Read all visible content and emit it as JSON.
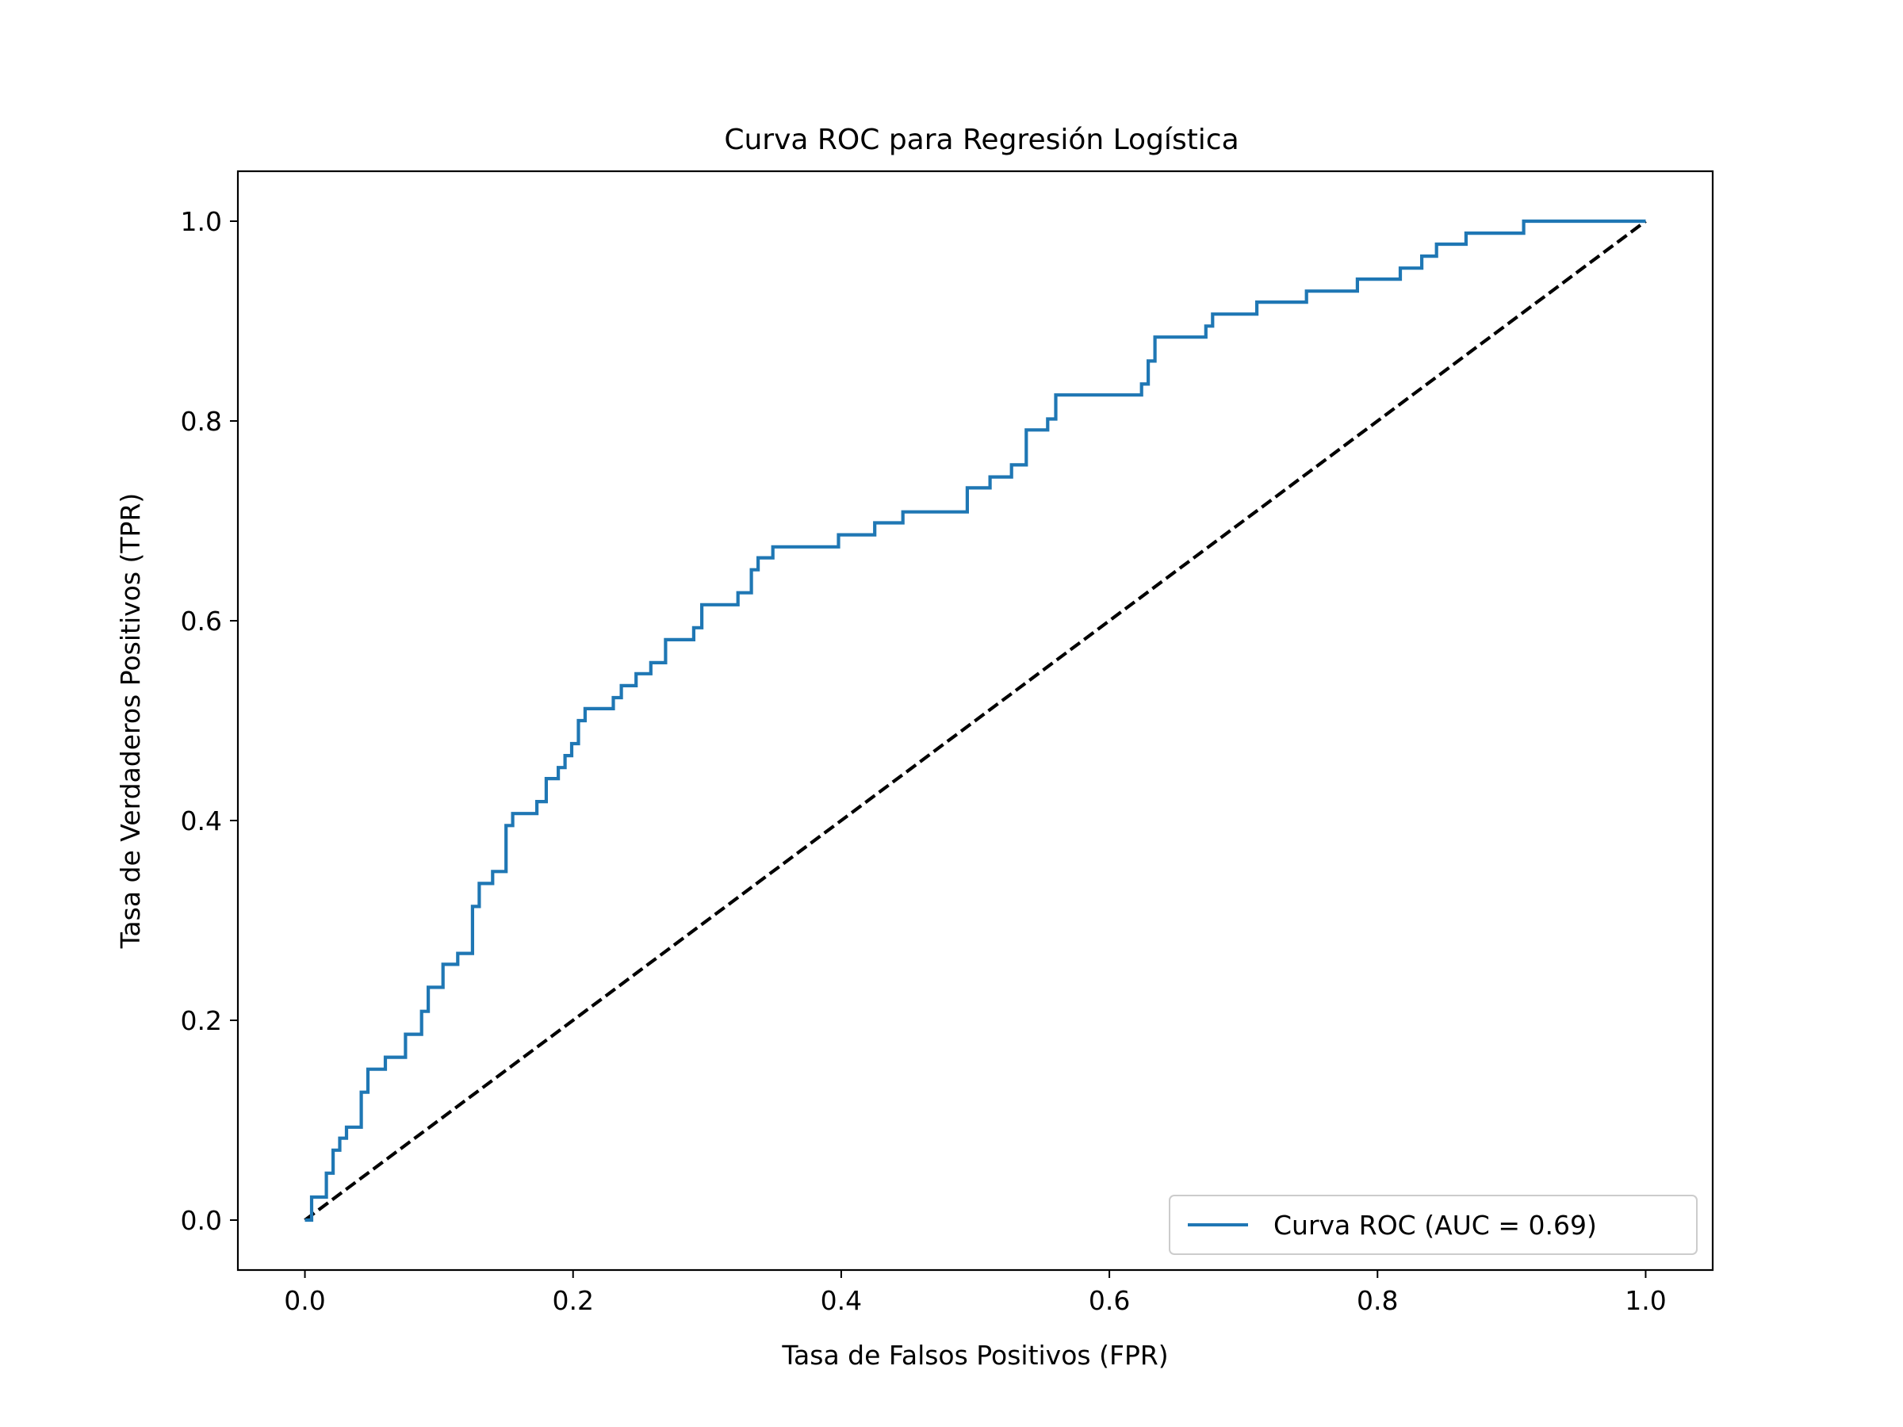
{
  "chart_data": {
    "type": "line",
    "title": "Curva ROC para Regresión Logística",
    "xlabel": "Tasa de Falsos Positivos (FPR)",
    "ylabel": "Tasa de Verdaderos Positivos (TPR)",
    "xlim": [
      -0.05,
      1.05
    ],
    "ylim": [
      -0.05,
      1.05
    ],
    "xticks": [
      0.0,
      0.2,
      0.4,
      0.6,
      0.8,
      1.0
    ],
    "yticks": [
      0.0,
      0.2,
      0.4,
      0.6,
      0.8,
      1.0
    ],
    "xtick_labels": [
      "0.0",
      "0.2",
      "0.4",
      "0.6",
      "0.8",
      "1.0"
    ],
    "ytick_labels": [
      "0.0",
      "0.2",
      "0.4",
      "0.6",
      "0.8",
      "1.0"
    ],
    "grid": false,
    "legend_position": "lower right",
    "series": [
      {
        "name": "Curva ROC (AUC = 0.69)",
        "color": "#1f77b4",
        "style": "solid",
        "x": [
          0.0,
          0.0,
          0.005,
          0.005,
          0.016,
          0.016,
          0.021,
          0.021,
          0.026,
          0.026,
          0.031,
          0.031,
          0.042,
          0.042,
          0.047,
          0.047,
          0.06,
          0.06,
          0.075,
          0.075,
          0.087,
          0.087,
          0.092,
          0.092,
          0.103,
          0.103,
          0.114,
          0.114,
          0.125,
          0.125,
          0.13,
          0.13,
          0.14,
          0.14,
          0.15,
          0.15,
          0.155,
          0.155,
          0.173,
          0.173,
          0.18,
          0.18,
          0.189,
          0.189,
          0.194,
          0.194,
          0.199,
          0.199,
          0.204,
          0.204,
          0.209,
          0.209,
          0.23,
          0.23,
          0.236,
          0.236,
          0.247,
          0.247,
          0.258,
          0.258,
          0.269,
          0.269,
          0.29,
          0.29,
          0.296,
          0.296,
          0.323,
          0.323,
          0.333,
          0.333,
          0.338,
          0.338,
          0.349,
          0.349,
          0.398,
          0.398,
          0.425,
          0.425,
          0.446,
          0.446,
          0.494,
          0.494,
          0.511,
          0.511,
          0.527,
          0.527,
          0.538,
          0.538,
          0.554,
          0.554,
          0.56,
          0.56,
          0.624,
          0.624,
          0.629,
          0.629,
          0.634,
          0.634,
          0.672,
          0.672,
          0.677,
          0.677,
          0.71,
          0.71,
          0.747,
          0.747,
          0.785,
          0.785,
          0.817,
          0.817,
          0.833,
          0.833,
          0.844,
          0.844,
          0.866,
          0.866,
          0.909,
          0.909,
          1.0
        ],
        "y": [
          0.0,
          0.0,
          0.0,
          0.023,
          0.023,
          0.047,
          0.047,
          0.07,
          0.07,
          0.082,
          0.082,
          0.093,
          0.093,
          0.128,
          0.128,
          0.151,
          0.151,
          0.163,
          0.163,
          0.186,
          0.186,
          0.209,
          0.209,
          0.233,
          0.233,
          0.256,
          0.256,
          0.267,
          0.267,
          0.314,
          0.314,
          0.337,
          0.337,
          0.349,
          0.349,
          0.395,
          0.395,
          0.407,
          0.407,
          0.419,
          0.419,
          0.442,
          0.442,
          0.453,
          0.453,
          0.465,
          0.465,
          0.477,
          0.477,
          0.5,
          0.5,
          0.512,
          0.512,
          0.523,
          0.523,
          0.535,
          0.535,
          0.547,
          0.547,
          0.558,
          0.558,
          0.581,
          0.581,
          0.593,
          0.593,
          0.616,
          0.616,
          0.628,
          0.628,
          0.651,
          0.651,
          0.663,
          0.663,
          0.674,
          0.674,
          0.686,
          0.686,
          0.698,
          0.698,
          0.709,
          0.709,
          0.733,
          0.733,
          0.744,
          0.744,
          0.756,
          0.756,
          0.791,
          0.791,
          0.802,
          0.802,
          0.826,
          0.826,
          0.837,
          0.837,
          0.86,
          0.86,
          0.884,
          0.884,
          0.895,
          0.895,
          0.907,
          0.907,
          0.919,
          0.919,
          0.93,
          0.93,
          0.942,
          0.942,
          0.953,
          0.953,
          0.965,
          0.965,
          0.977,
          0.977,
          0.988,
          0.988,
          1.0,
          1.0
        ]
      },
      {
        "color": "#000000",
        "style": "dashed",
        "x": [
          0.0,
          1.0
        ],
        "y": [
          0.0,
          1.0
        ]
      }
    ]
  }
}
